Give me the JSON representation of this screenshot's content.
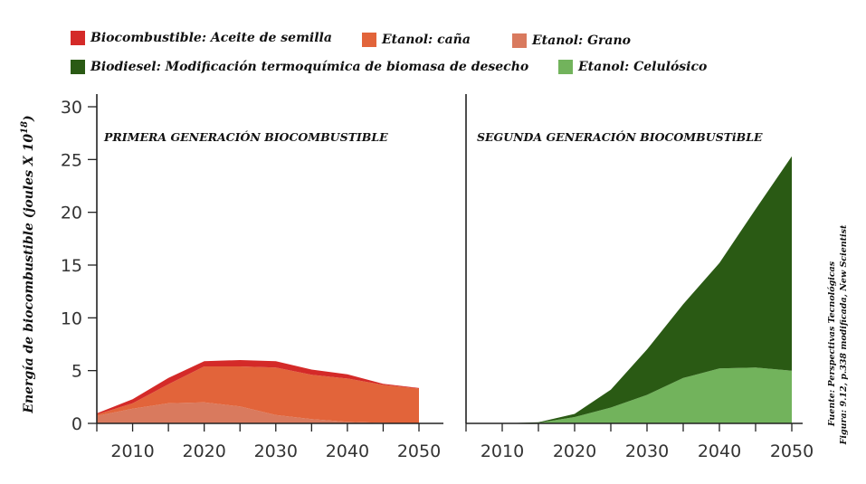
{
  "legend": [
    {
      "label": "Biocombustible: Aceite de semilla",
      "color": "#d42a28"
    },
    {
      "label": "Etanol: caña",
      "color": "#e2643a"
    },
    {
      "label": "Etanol: Grano",
      "color": "#d97a5e"
    },
    {
      "label": "Biodiesel: Modificación termoquímica de biomasa de desecho",
      "color": "#2a5a14"
    },
    {
      "label": "Etanol: Celulósico",
      "color": "#72b35c"
    }
  ],
  "ylabel_main": "Energía de biocombustible (joules X 10",
  "ylabel_exp": "18",
  "ylabel_close": ")",
  "source_line1": "Fuente: Perspectivas Tecnológicas",
  "source_line2": "Figura: 9.12, p.338 modificada, New Scientist",
  "chart_data": {
    "type": "area",
    "stacked": true,
    "ylim": [
      0,
      30
    ],
    "yticks": [
      0,
      5,
      10,
      15,
      20,
      25,
      30
    ],
    "xticks": [
      2010,
      2020,
      2030,
      2040,
      2050
    ],
    "panels": [
      {
        "title": "PRIMERA GENERACIÓN BIOCOMBUSTIBLE",
        "x": [
          2005,
          2010,
          2015,
          2020,
          2025,
          2030,
          2035,
          2040,
          2045,
          2050
        ],
        "series": [
          {
            "name": "Etanol: Grano",
            "color": "#d97a5e",
            "values": [
              0.7,
              1.4,
              1.9,
              2.0,
              1.6,
              0.8,
              0.4,
              0.15,
              0.05,
              0.0
            ]
          },
          {
            "name": "Etanol: caña",
            "color": "#e2643a",
            "values": [
              0.15,
              0.5,
              1.8,
              3.4,
              3.8,
              4.5,
              4.2,
              4.1,
              3.6,
              3.3
            ]
          },
          {
            "name": "Biocombustible: Aceite de semilla",
            "color": "#d42a28",
            "values": [
              0.1,
              0.4,
              0.6,
              0.5,
              0.6,
              0.6,
              0.5,
              0.4,
              0.1,
              0.05
            ]
          }
        ]
      },
      {
        "title": "SEGUNDA GENERACIÓN BIOCOMBUSTiBLE",
        "x": [
          2010,
          2015,
          2020,
          2025,
          2030,
          2035,
          2040,
          2045,
          2050
        ],
        "series": [
          {
            "name": "Etanol: Celulósico",
            "color": "#72b35c",
            "values": [
              0.0,
              0.05,
              0.6,
              1.5,
              2.7,
              4.3,
              5.2,
              5.3,
              5.0
            ]
          },
          {
            "name": "Biodiesel: Modificación termoquímica de biomasa de desecho",
            "color": "#2a5a14",
            "values": [
              0.0,
              0.05,
              0.3,
              1.7,
              4.3,
              7.0,
              10.0,
              15.0,
              20.3
            ]
          }
        ]
      }
    ]
  }
}
